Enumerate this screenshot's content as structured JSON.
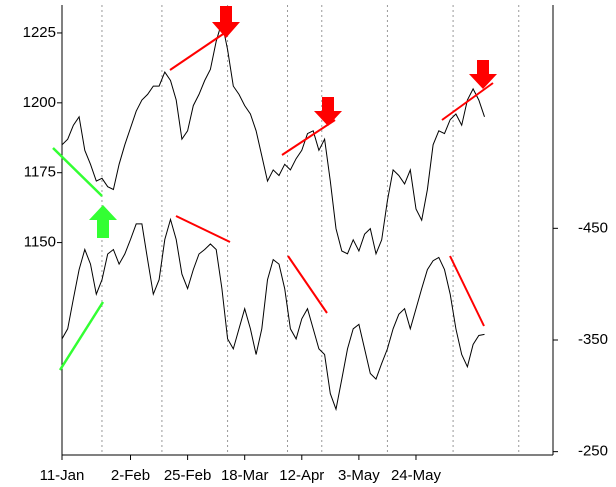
{
  "chart_data": {
    "type": "line",
    "x": [
      0,
      1,
      2,
      3,
      4,
      5,
      6,
      7,
      8,
      9,
      10,
      11,
      12,
      13,
      14,
      15,
      16,
      17,
      18,
      19,
      20,
      21,
      22,
      23,
      24,
      25,
      26,
      27,
      28,
      29,
      30,
      31,
      32,
      33,
      34,
      35,
      36,
      37,
      38,
      39,
      40,
      41,
      42,
      43,
      44,
      45,
      46,
      47,
      48,
      49,
      50,
      51,
      52,
      53,
      54,
      55,
      56,
      57,
      58,
      59,
      60,
      61,
      62,
      63,
      64,
      65,
      66,
      67,
      68,
      69,
      70,
      71,
      72,
      73,
      74
    ],
    "series": [
      {
        "color": "#000000",
        "axis": "y",
        "values": [
          1185,
          1187,
          1192,
          1195,
          1183,
          1178,
          1172,
          1173,
          1170,
          1169,
          1178,
          1185,
          1191,
          1197,
          1201,
          1203,
          1206,
          1206,
          1211,
          1208,
          1201,
          1187,
          1190,
          1199,
          1203,
          1208,
          1212,
          1222,
          1229,
          1219,
          1206,
          1203,
          1199,
          1196,
          1190,
          1181,
          1172,
          1176,
          1174,
          1178,
          1176,
          1180,
          1183,
          1189,
          1190,
          1183,
          1187,
          1172,
          1155,
          1147,
          1146,
          1151,
          1147,
          1153,
          1155,
          1146,
          1151,
          1165,
          1176,
          1174,
          1171,
          1176,
          1162,
          1158,
          1169,
          1185,
          1190,
          1189,
          1194,
          1196,
          1192,
          1201,
          1205,
          1201,
          1195
        ]
      },
      {
        "color": "#000000",
        "axis": "y2",
        "values": [
          -351,
          -360,
          -387,
          -413,
          -431,
          -418,
          -391,
          -404,
          -427,
          -431,
          -418,
          -427,
          -440,
          -454,
          -454,
          -422,
          -391,
          -404,
          -440,
          -458,
          -440,
          -409,
          -396,
          -413,
          -427,
          -431,
          -436,
          -431,
          -396,
          -351,
          -342,
          -360,
          -378,
          -360,
          -337,
          -360,
          -404,
          -422,
          -418,
          -396,
          -360,
          -351,
          -369,
          -378,
          -360,
          -342,
          -337,
          -302,
          -288,
          -315,
          -342,
          -360,
          -364,
          -342,
          -320,
          -315,
          -329,
          -342,
          -360,
          -373,
          -378,
          -360,
          -378,
          -396,
          -413,
          -421,
          -424,
          -413,
          -391,
          -360,
          -337,
          -326,
          -346,
          -354,
          -355
        ]
      }
    ],
    "xlim": [
      0,
      86
    ],
    "xticks": [
      {
        "value": 0,
        "label": "11-Jan"
      },
      {
        "value": 12,
        "label": "2-Feb"
      },
      {
        "value": 22,
        "label": "25-Feb"
      },
      {
        "value": 32,
        "label": "18-Mar"
      },
      {
        "value": 42,
        "label": "12-Apr"
      },
      {
        "value": 52,
        "label": "3-May"
      },
      {
        "value": 62,
        "label": "24-May"
      }
    ],
    "xgrid": [
      7,
      17.5,
      29,
      39.5,
      45.5,
      57,
      68.5,
      80
    ],
    "ylim": [
      1074,
      1235
    ],
    "yticks": [
      1150,
      1175,
      1200,
      1225
    ],
    "y2lim": [
      -247,
      -650
    ],
    "y2ticks": [
      -450,
      -350,
      -250
    ]
  }
}
